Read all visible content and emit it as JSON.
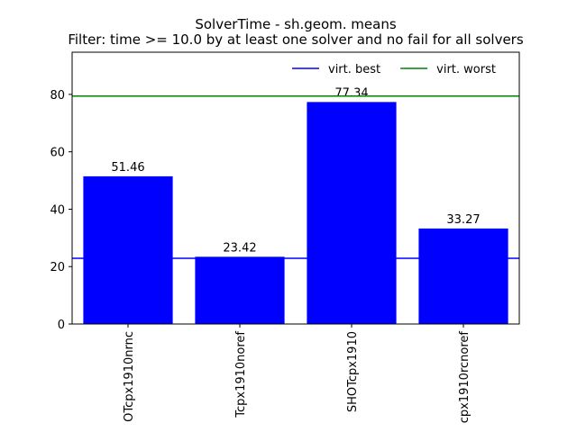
{
  "chart_data": {
    "type": "bar",
    "title": "SolverTime - sh.geom. means",
    "subtitle": "Filter: time >= 10.0 by at least one solver and no fail for all solvers",
    "categories": [
      "OTcpx1910nrnc",
      "Tcpx1910noref",
      "SHOTcpx1910",
      "cpx1910rcnoref"
    ],
    "values": [
      51.46,
      23.42,
      77.34,
      33.27
    ],
    "color": "#0000ff",
    "reference_lines": [
      {
        "name": "virt. best",
        "value": 22.9,
        "color": "#0000ff"
      },
      {
        "name": "virt. worst",
        "value": 79.4,
        "color": "#008000"
      }
    ],
    "ylim": [
      0,
      94.7
    ],
    "yticks": [
      0,
      20,
      40,
      60,
      80
    ],
    "legend": "upper right"
  }
}
